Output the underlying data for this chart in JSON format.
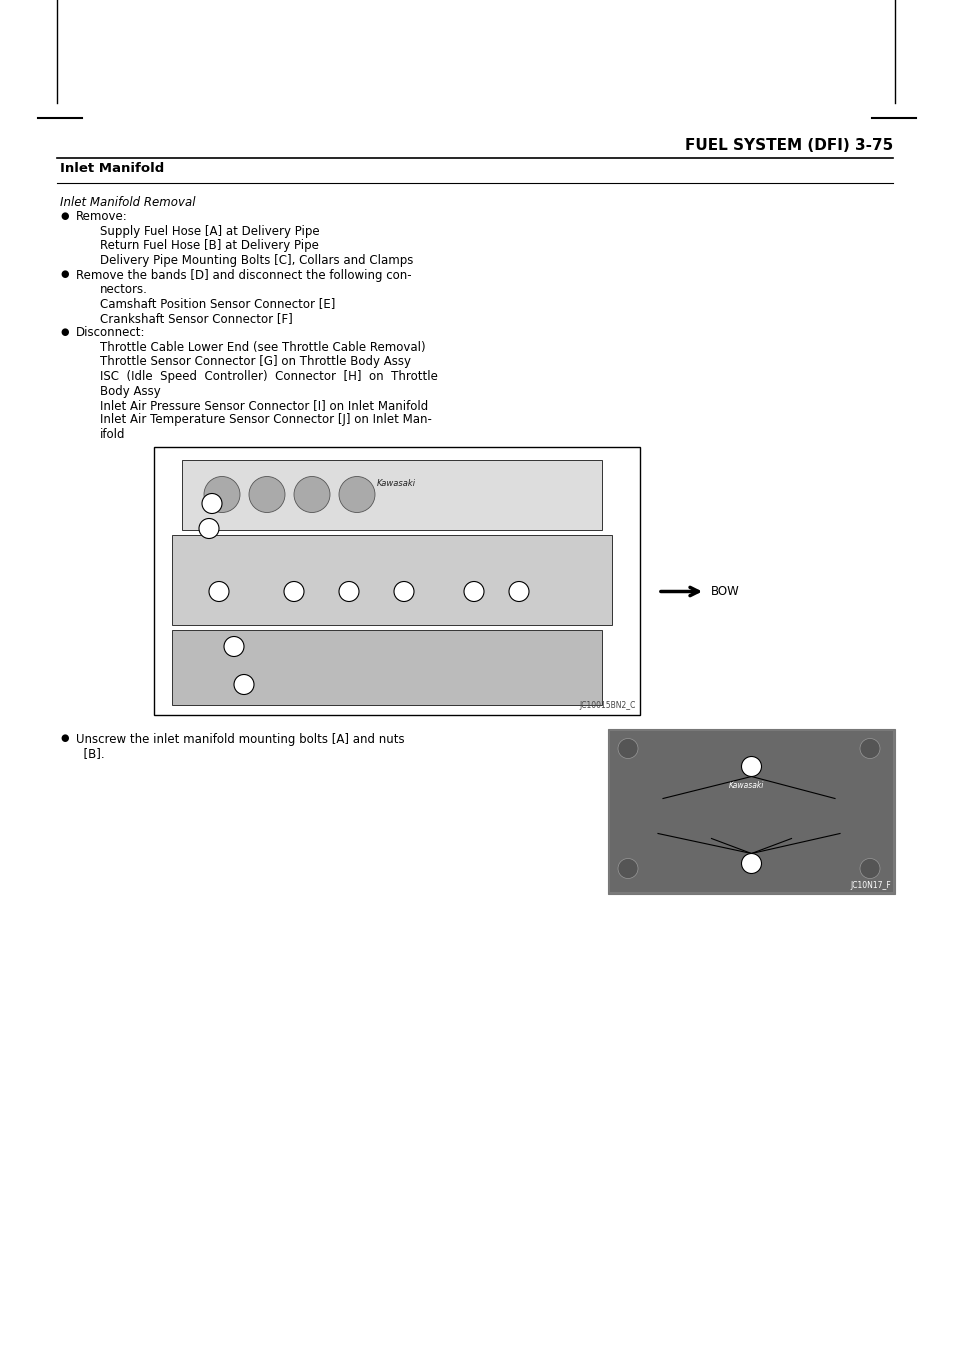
{
  "page_title": "FUEL SYSTEM (DFI) 3-75",
  "section_title": "Inlet Manifold",
  "subsection_title": "Inlet Manifold Removal",
  "body_lines": [
    {
      "type": "bullet",
      "text": "Remove:"
    },
    {
      "type": "indent",
      "text": "Supply Fuel Hose [A] at Delivery Pipe"
    },
    {
      "type": "indent",
      "text": "Return Fuel Hose [B] at Delivery Pipe"
    },
    {
      "type": "indent",
      "text": "Delivery Pipe Mounting Bolts [C], Collars and Clamps"
    },
    {
      "type": "bullet2",
      "text": "Remove the bands [D] and disconnect the following con-",
      "text2": "nectors."
    },
    {
      "type": "indent",
      "text": "Camshaft Position Sensor Connector [E]"
    },
    {
      "type": "indent",
      "text": "Crankshaft Sensor Connector [F]"
    },
    {
      "type": "bullet",
      "text": "Disconnect:"
    },
    {
      "type": "indent",
      "text": "Throttle Cable Lower End (see Throttle Cable Removal)"
    },
    {
      "type": "indent",
      "text": "Throttle Sensor Connector [G] on Throttle Body Assy"
    },
    {
      "type": "indent2",
      "text": "ISC  (Idle  Speed  Controller)  Connector  [H]  on  Throttle",
      "text2": "Body Assy"
    },
    {
      "type": "indent",
      "text": "Inlet Air Pressure Sensor Connector [I] on Inlet Manifold"
    },
    {
      "type": "indent2",
      "text": "Inlet Air Temperature Sensor Connector [J] on Inlet Man-",
      "text2": "ifold"
    }
  ],
  "bullet2_line1": "Unscrew the inlet manifold mounting bolts [A] and nuts",
  "bullet2_line2": "  [B].",
  "bg_color": "#ffffff",
  "text_color": "#000000"
}
